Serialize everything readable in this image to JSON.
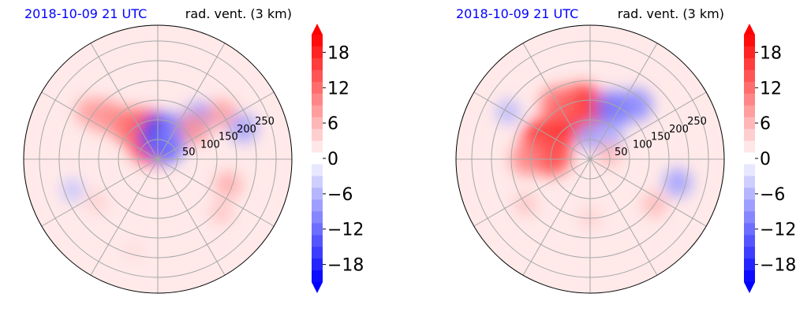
{
  "chart_data": [
    {
      "type": "heatmap",
      "projection": "polar",
      "title_left": "2018-10-09 21 UTC",
      "title_right": "rad. vent. (3 km)",
      "title_left_color": "#0000ff",
      "ring_labels": [
        "50",
        "100",
        "150",
        "200",
        "250"
      ],
      "colorbar": {
        "ticks": [
          "18",
          "12",
          "6",
          "0",
          "−6",
          "−12",
          "−18"
        ],
        "tick_values": [
          18,
          12,
          6,
          0,
          -6,
          -12,
          -18
        ],
        "vmin": -21,
        "vmax": 21,
        "extend": "both",
        "colormap": "bwr",
        "color_neg": "#0000ff",
        "color_mid": "#ffffff",
        "color_pos": "#ff0000"
      },
      "blobs": [
        {
          "r": 50,
          "az": 105,
          "v": 18
        },
        {
          "r": 80,
          "az": 115,
          "v": 15
        },
        {
          "r": 110,
          "az": 130,
          "v": 12
        },
        {
          "r": 170,
          "az": 140,
          "v": 10
        },
        {
          "r": 210,
          "az": 145,
          "v": 8
        },
        {
          "r": 60,
          "az": 80,
          "v": -16
        },
        {
          "r": 40,
          "az": 60,
          "v": -12
        },
        {
          "r": 90,
          "az": 55,
          "v": -10
        },
        {
          "r": 150,
          "az": 45,
          "v": -9
        },
        {
          "r": 120,
          "az": 40,
          "v": 9
        },
        {
          "r": 200,
          "az": 35,
          "v": 8
        },
        {
          "r": 230,
          "az": 20,
          "v": -8
        },
        {
          "r": 190,
          "az": 340,
          "v": 7
        },
        {
          "r": 210,
          "az": 320,
          "v": 5
        },
        {
          "r": 230,
          "az": 200,
          "v": -5
        },
        {
          "r": 190,
          "az": 215,
          "v": 4
        },
        {
          "r": 240,
          "az": 255,
          "v": 3
        }
      ]
    },
    {
      "type": "heatmap",
      "projection": "polar",
      "title_left": "2018-10-09 21 UTC",
      "title_right": "rad. vent. (3 km)",
      "title_left_color": "#0000ff",
      "ring_labels": [
        "50",
        "100",
        "150",
        "200",
        "250"
      ],
      "colorbar": {
        "ticks": [
          "18",
          "12",
          "6",
          "0",
          "−6",
          "−12",
          "−18"
        ],
        "tick_values": [
          18,
          12,
          6,
          0,
          -6,
          -12,
          -18
        ],
        "vmin": -21,
        "vmax": 21,
        "extend": "both",
        "colormap": "bwr",
        "color_neg": "#0000ff",
        "color_mid": "#ffffff",
        "color_pos": "#ff0000"
      },
      "blobs": [
        {
          "r": 130,
          "az": 100,
          "v": 18
        },
        {
          "r": 110,
          "az": 115,
          "v": 16
        },
        {
          "r": 160,
          "az": 120,
          "v": 12
        },
        {
          "r": 120,
          "az": 160,
          "v": 18
        },
        {
          "r": 100,
          "az": 175,
          "v": 14
        },
        {
          "r": 160,
          "az": 180,
          "v": 10
        },
        {
          "r": 140,
          "az": 65,
          "v": -12
        },
        {
          "r": 180,
          "az": 50,
          "v": -10
        },
        {
          "r": 60,
          "az": 90,
          "v": -8
        },
        {
          "r": 80,
          "az": 50,
          "v": -7
        },
        {
          "r": 50,
          "az": 15,
          "v": 6
        },
        {
          "r": 230,
          "az": 345,
          "v": -8
        },
        {
          "r": 200,
          "az": 325,
          "v": 6
        },
        {
          "r": 200,
          "az": 215,
          "v": 5
        },
        {
          "r": 240,
          "az": 150,
          "v": -6
        },
        {
          "r": 150,
          "az": 270,
          "v": 4
        }
      ]
    }
  ]
}
